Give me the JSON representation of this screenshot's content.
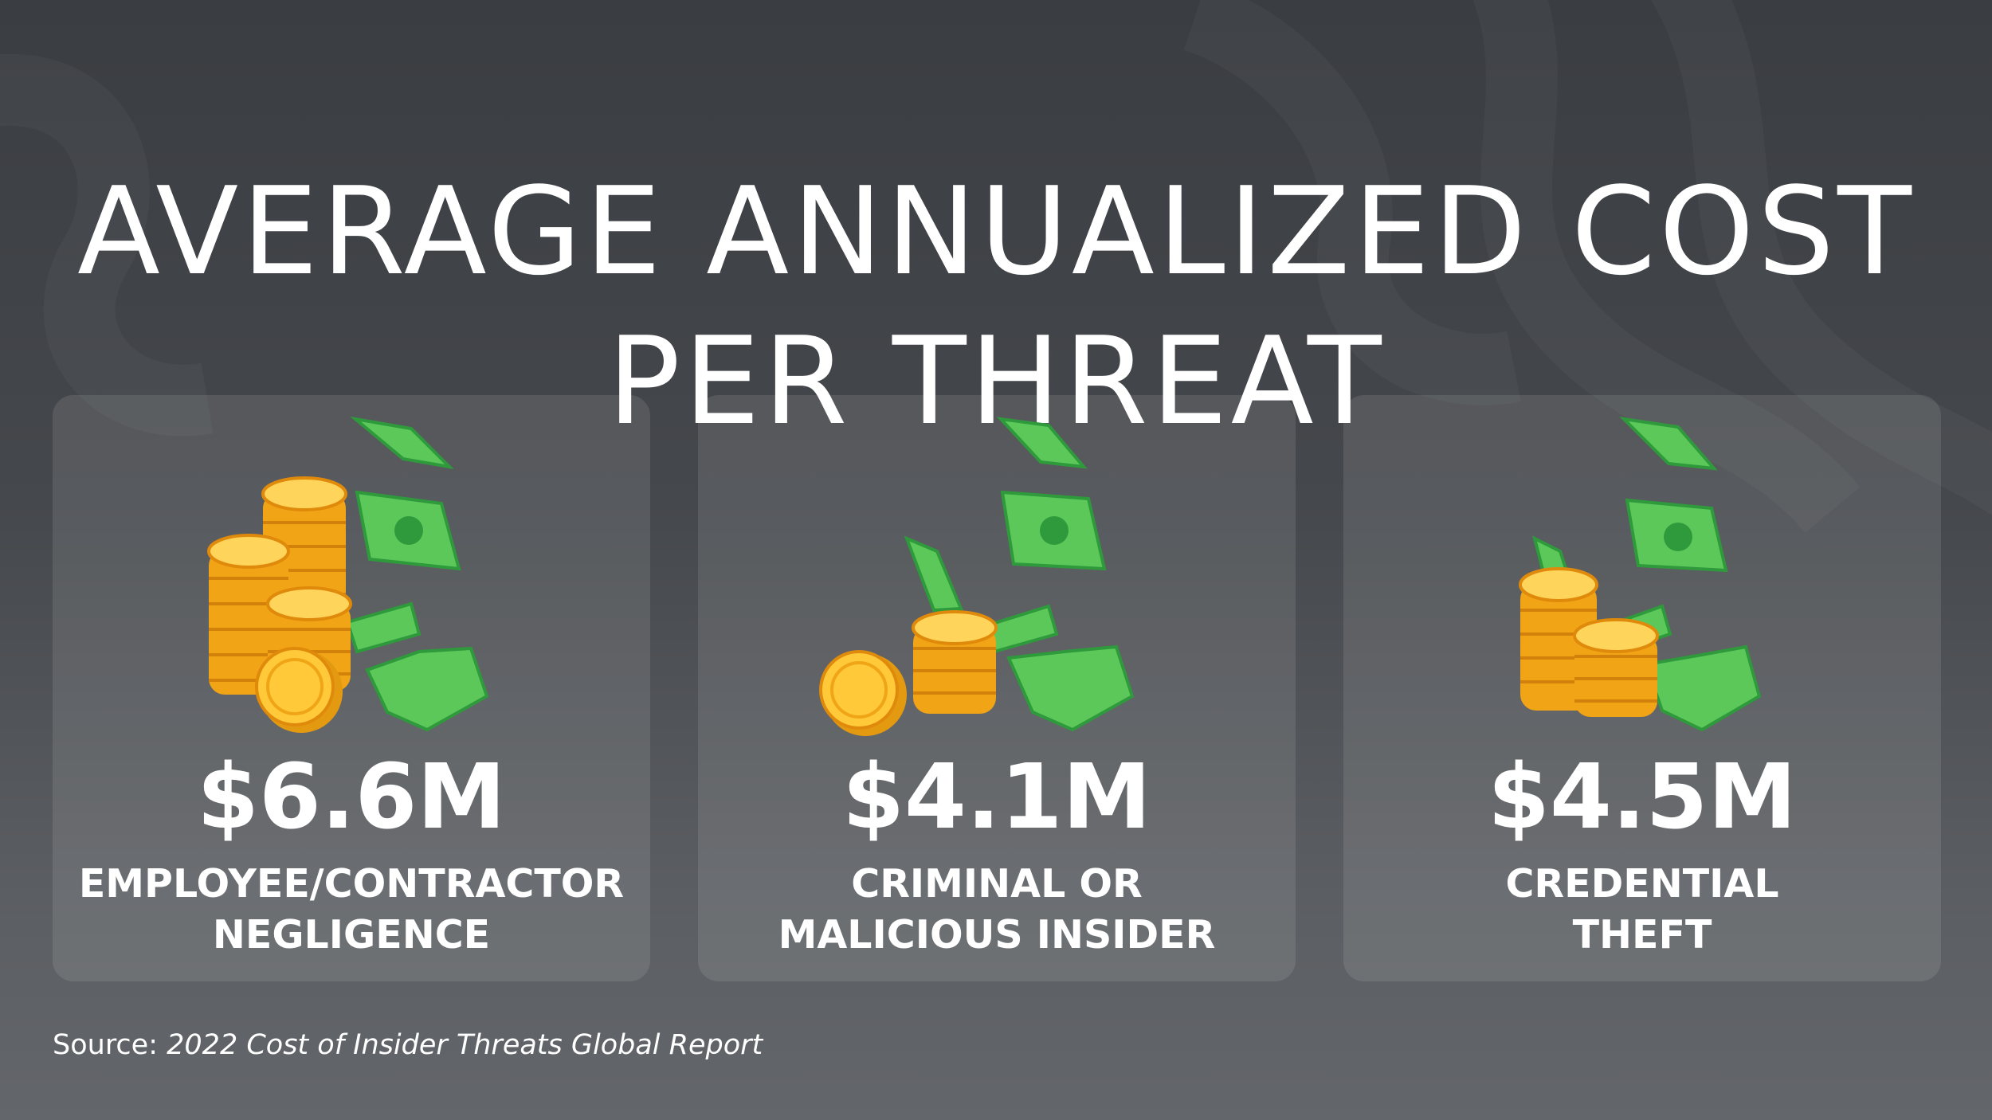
{
  "title": {
    "line1": "AVERAGE ANNUALIZED COST",
    "line2": "PER THREAT"
  },
  "colors": {
    "background_top": "#3a3d41",
    "background_bottom": "#63666a",
    "coin": "#f7b51c",
    "coin_dark": "#e08a0c",
    "bill": "#5cc85a",
    "bill_dark": "#2f9a3c"
  },
  "cards": [
    {
      "value": "$6.6M",
      "label_line1": "EMPLOYEE/CONTRACTOR",
      "label_line2": "NEGLIGENCE",
      "icon": "coins-and-money-icon"
    },
    {
      "value": "$4.1M",
      "label_line1": "CRIMINAL OR",
      "label_line2": "MALICIOUS INSIDER",
      "icon": "coins-and-money-icon"
    },
    {
      "value": "$4.5M",
      "label_line1": "CREDENTIAL",
      "label_line2": "THEFT",
      "icon": "coins-and-money-icon"
    }
  ],
  "source": {
    "prefix": "Source: ",
    "report": "2022 Cost of Insider Threats Global Report"
  }
}
